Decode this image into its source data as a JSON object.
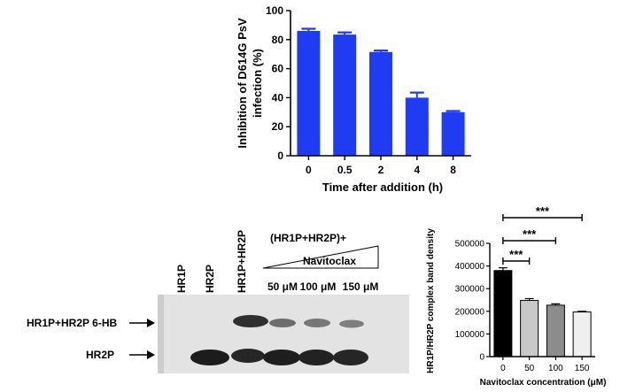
{
  "chart_data": [
    {
      "type": "bar",
      "categories": [
        "0",
        "0.5",
        "2",
        "4",
        "8"
      ],
      "values": [
        86,
        83.5,
        71.5,
        40,
        30
      ],
      "errors": [
        1.5,
        1.5,
        1,
        3.5,
        0.8
      ],
      "ylabel": "Inhibition of D614G PsV infection (%)",
      "ylabel_lines": [
        "Inhibition of D614G PsV",
        "infection (%)"
      ],
      "xlabel": "Time after addition (h)",
      "ylim": [
        0,
        100
      ],
      "yticks": [
        0,
        20,
        40,
        60,
        80,
        100
      ],
      "color": "#1f3cf2"
    },
    {
      "type": "bar",
      "categories": [
        "0",
        "50",
        "100",
        "150"
      ],
      "values": [
        380000,
        248000,
        227000,
        197000
      ],
      "errors": [
        12000,
        8000,
        6000,
        3000
      ],
      "ylabel": "HR1P/HR2P complex band density",
      "xlabel": "Navitoclax concentration (μM)",
      "ylim": [
        0,
        500000
      ],
      "yticks": [
        0,
        100000,
        200000,
        300000,
        400000,
        500000
      ],
      "colors": [
        "#000000",
        "#c8c8c8",
        "#8c8c8c",
        "#efefef"
      ],
      "significance": [
        {
          "from": "0",
          "to": "50",
          "label": "***"
        },
        {
          "from": "0",
          "to": "100",
          "label": "***"
        },
        {
          "from": "0",
          "to": "150",
          "label": "***"
        }
      ]
    }
  ],
  "gel": {
    "lane_labels": [
      "HR1P",
      "HR2P",
      "HR1P+HR2P"
    ],
    "group_label": "(HR1P+HR2P)+",
    "wedge_label": "Navitoclax",
    "dose_labels": [
      "50 μM",
      "100 μM",
      "150 μM"
    ],
    "band_labels": [
      "HR1P+HR2P 6-HB",
      "HR2P"
    ]
  }
}
